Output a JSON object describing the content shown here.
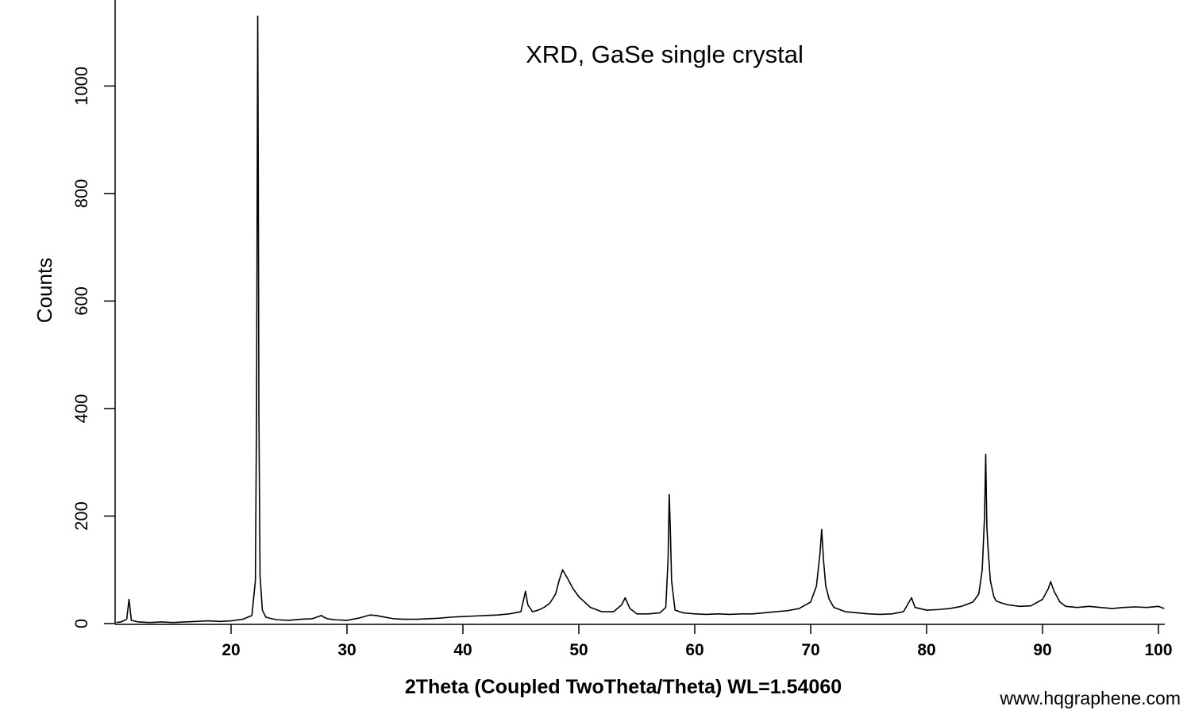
{
  "chart_data": {
    "type": "line",
    "title": "XRD, GaSe single crystal",
    "xlabel": "2Theta (Coupled TwoTheta/Theta) WL=1.54060",
    "ylabel": "Counts",
    "watermark": "www.hqgraphene.com",
    "x": [
      10.1,
      10.5,
      11.0,
      11.2,
      11.4,
      12,
      13,
      14,
      15,
      16,
      17,
      18,
      19,
      20,
      21,
      21.8,
      22.1,
      22.2,
      22.3,
      22.35,
      22.4,
      22.5,
      22.7,
      23,
      23.5,
      24,
      25,
      26,
      27,
      27.8,
      28,
      28.3,
      29,
      30,
      31,
      32,
      32.5,
      33,
      34,
      35,
      36,
      37,
      38,
      39,
      40,
      41,
      42,
      43,
      44,
      45,
      45.4,
      45.6,
      46,
      46.5,
      47,
      47.5,
      48,
      48.3,
      48.6,
      49,
      49.5,
      50,
      50.5,
      51,
      52,
      53,
      53.7,
      54,
      54.4,
      55,
      56,
      57,
      57.5,
      57.7,
      57.8,
      57.9,
      58,
      58.3,
      59,
      60,
      61,
      62,
      63,
      64,
      65,
      66,
      67,
      68,
      69,
      70,
      70.5,
      70.8,
      70.95,
      71.1,
      71.3,
      71.6,
      72,
      73,
      74,
      75,
      76,
      77,
      78,
      78.7,
      79,
      80,
      81,
      82,
      83,
      84,
      84.5,
      84.8,
      85.0,
      85.1,
      85.2,
      85.3,
      85.5,
      85.8,
      86,
      86.5,
      87,
      88,
      89,
      90,
      90.5,
      90.7,
      91,
      91.5,
      92,
      93,
      94,
      95,
      96,
      97,
      98,
      99,
      100,
      100.5
    ],
    "series": [
      {
        "color": "#000000",
        "values": [
          2,
          3,
          8,
          45,
          6,
          3,
          2,
          3,
          2,
          3,
          4,
          5,
          4,
          5,
          8,
          15,
          80,
          400,
          1130,
          830,
          400,
          90,
          25,
          12,
          9,
          7,
          6,
          8,
          9,
          15,
          12,
          9,
          7,
          6,
          10,
          16,
          15,
          13,
          9,
          8,
          8,
          9,
          10,
          12,
          13,
          14,
          15,
          16,
          18,
          22,
          60,
          35,
          22,
          25,
          30,
          38,
          55,
          80,
          100,
          85,
          65,
          50,
          40,
          30,
          22,
          22,
          35,
          48,
          28,
          18,
          18,
          20,
          30,
          120,
          240,
          170,
          80,
          25,
          20,
          18,
          17,
          18,
          17,
          18,
          18,
          20,
          22,
          24,
          28,
          40,
          70,
          130,
          175,
          120,
          70,
          45,
          30,
          22,
          20,
          18,
          17,
          18,
          22,
          48,
          30,
          25,
          26,
          28,
          32,
          40,
          55,
          100,
          200,
          315,
          180,
          140,
          80,
          50,
          42,
          38,
          35,
          32,
          33,
          45,
          65,
          78,
          60,
          40,
          32,
          30,
          32,
          30,
          28,
          30,
          31,
          30,
          32,
          28
        ]
      }
    ],
    "xlim": [
      10,
      100.5
    ],
    "ylim": [
      0,
      1160
    ],
    "xticks": [
      20,
      30,
      40,
      50,
      60,
      70,
      80,
      90,
      100
    ],
    "yticks": [
      0,
      200,
      400,
      600,
      800,
      1000
    ]
  }
}
